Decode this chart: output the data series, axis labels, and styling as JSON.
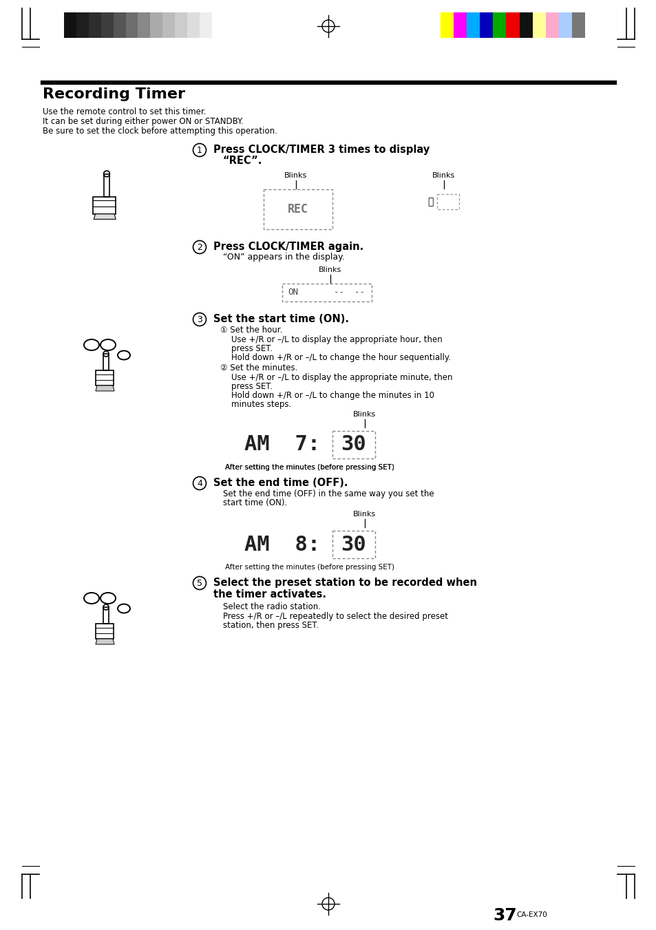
{
  "bg_color": "#ffffff",
  "title": "Recording Timer",
  "intro_lines": [
    "Use the remote control to set this timer.",
    "It can be set during either power ON or STANDBY.",
    "Be sure to set the clock before attempting this operation."
  ],
  "step1_text_line1": "Press CLOCK/TIMER 3 times to display",
  "step1_text_line2": "“REC”.",
  "step2_text": "Press CLOCK/TIMER again.",
  "step2_sub": "“ON” appears in the display.",
  "step3_text": "Set the start time (ON).",
  "step3_sub1": "① Set the hour.",
  "step3_sub1a": "Use +/R or –/L to display the appropriate hour, then",
  "step3_sub1a2": "press SET.",
  "step3_sub1b": "Hold down +/R or –/L to change the hour sequentially.",
  "step3_sub2": "② Set the minutes.",
  "step3_sub2a": "Use +/R or –/L to display the appropriate minute, then",
  "step3_sub2a2": "press SET.",
  "step3_sub2b": "Hold down +/R or –/L to change the minutes in 10",
  "step3_sub2b2": "minutes steps.",
  "step3_caption": "After setting the minutes (before pressing SET)",
  "step4_text": "Set the end time (OFF).",
  "step4_sub1": "Set the end time (OFF) in the same way you set the",
  "step4_sub2": "start time (ON).",
  "step4_caption": "After setting the minutes (before pressing SET)",
  "step5_text1": "Select the preset station to be recorded when",
  "step5_text2": "the timer activates.",
  "step5_sub1": "Select the radio station.",
  "step5_sub2": "Press +/R or –/L repeatedly to select the desired preset",
  "step5_sub3": "station, then press SET.",
  "page_num": "37",
  "model": "CA-EX70",
  "gray_bars": [
    "#111111",
    "#1e1e1e",
    "#2d2d2d",
    "#3d3d3d",
    "#555555",
    "#6e6e6e",
    "#888888",
    "#aaaaaa",
    "#bbbbbb",
    "#cccccc",
    "#dddddd",
    "#eeeeee"
  ],
  "color_bars": [
    "#ffff00",
    "#ff00ff",
    "#00aaff",
    "#0000bb",
    "#00aa00",
    "#ee0000",
    "#111111",
    "#ffff99",
    "#ffaacc",
    "#aaccff",
    "#777777"
  ]
}
